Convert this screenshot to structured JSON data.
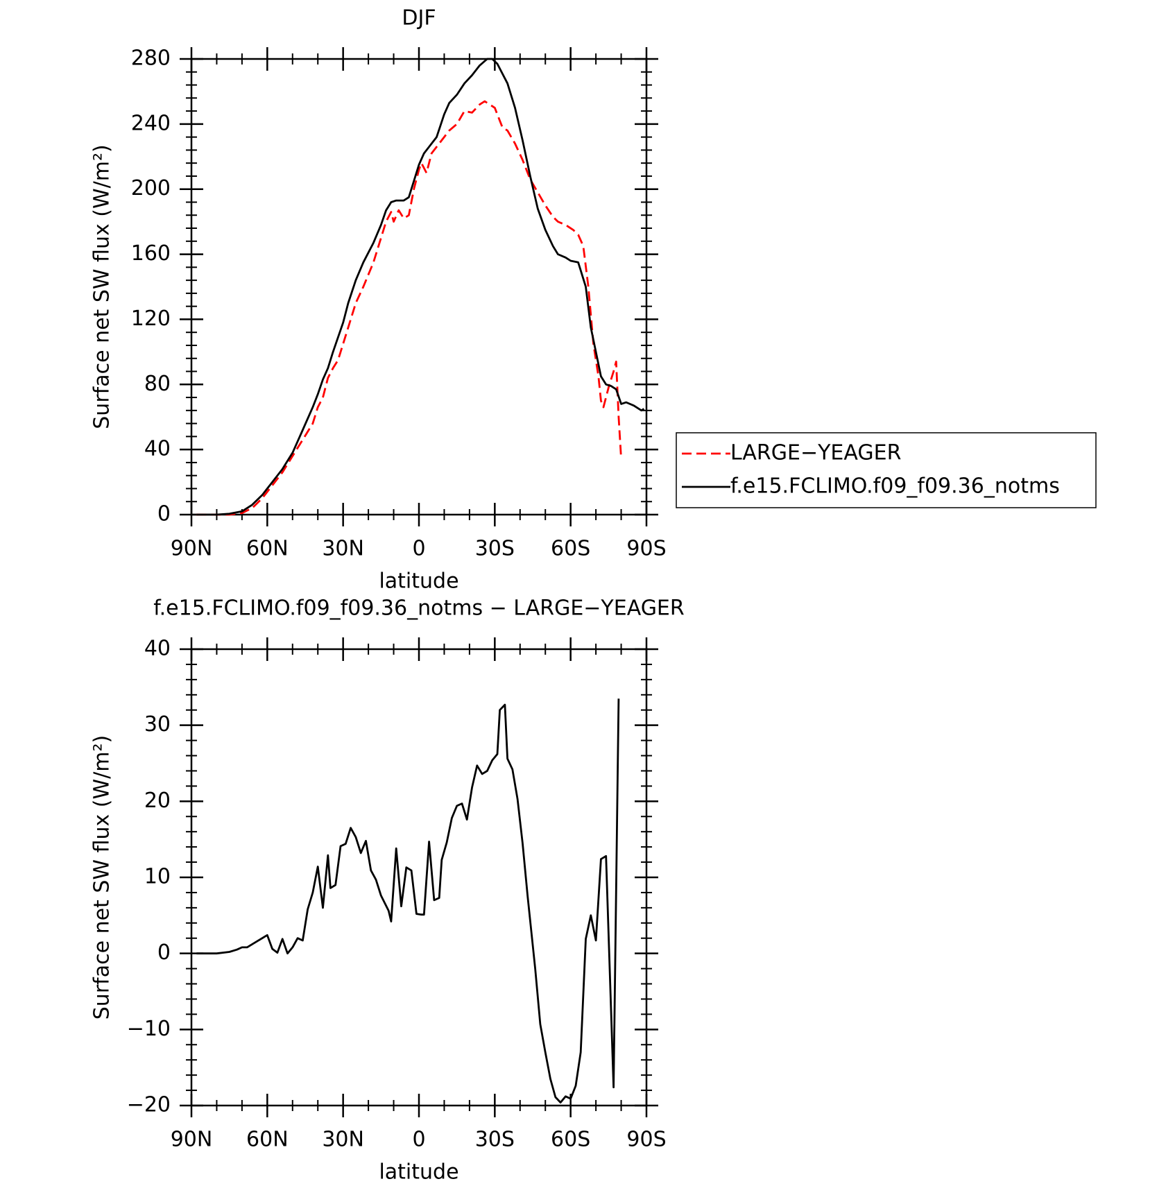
{
  "chart_data": [
    {
      "type": "line",
      "title": "DJF",
      "xlabel": "latitude",
      "ylabel": "Surface net SW flux (W/m²)",
      "xlim": [
        90,
        -90
      ],
      "xticks": [
        {
          "value": 90,
          "label": "90N"
        },
        {
          "value": 60,
          "label": "60N"
        },
        {
          "value": 30,
          "label": "30N"
        },
        0,
        {
          "value": -30,
          "label": "30S"
        },
        {
          "value": -60,
          "label": "60S"
        },
        {
          "value": -90,
          "label": "90S"
        }
      ],
      "ylim": [
        0,
        280
      ],
      "yticks": [
        0,
        40,
        80,
        120,
        160,
        200,
        240,
        280
      ],
      "legend": "right",
      "series": [
        {
          "name": "LARGE−YEAGER",
          "color": "#ff0000",
          "linestyle": "dashed",
          "x": [
            88,
            75,
            70,
            66,
            62,
            58,
            54,
            50,
            46,
            42,
            40,
            38,
            36,
            34,
            32,
            28,
            25,
            22,
            18,
            15,
            13,
            11,
            10,
            8,
            6,
            4,
            2,
            0,
            -1,
            -3,
            -5,
            -7,
            -10,
            -12,
            -15,
            -18,
            -21,
            -24,
            -26,
            -28,
            -30,
            -33,
            -35,
            -38,
            -41,
            -44,
            -47,
            -50,
            -53,
            -55,
            -58,
            -61,
            -63,
            -65,
            -67,
            -69,
            -71,
            -72,
            -73,
            -75,
            -77,
            -78,
            -79,
            -80
          ],
          "values": [
            0,
            0,
            1,
            4,
            10,
            18,
            26,
            36,
            46,
            56,
            66,
            72,
            84,
            90,
            95,
            115,
            130,
            140,
            155,
            170,
            180,
            186,
            180,
            187,
            182,
            184,
            200,
            212,
            216,
            210,
            222,
            226,
            232,
            236,
            240,
            248,
            247,
            252,
            254,
            252,
            250,
            238,
            236,
            228,
            218,
            206,
            198,
            190,
            183,
            180,
            178,
            175,
            172,
            165,
            140,
            105,
            85,
            70,
            66,
            78,
            88,
            94,
            60,
            34
          ]
        },
        {
          "name": "f.e15.FCLIMO.f09_f09.36_notms",
          "color": "#000000",
          "linestyle": "solid",
          "x": [
            88,
            80,
            75,
            70,
            66,
            62,
            58,
            54,
            50,
            46,
            42,
            40,
            38,
            36,
            34,
            30,
            28,
            25,
            22,
            18,
            15,
            13,
            11,
            9,
            6,
            4,
            2,
            0,
            -2,
            -4,
            -7,
            -10,
            -12,
            -15,
            -18,
            -21,
            -24,
            -27,
            -29,
            -31,
            -35,
            -38,
            -41,
            -44,
            -47,
            -50,
            -53,
            -55,
            -58,
            -60,
            -63,
            -65,
            -66,
            -68,
            -70,
            -72,
            -74,
            -76,
            -78,
            -80,
            -82,
            -85,
            -88,
            -89
          ],
          "values": [
            0,
            0,
            0.5,
            2,
            6,
            12,
            20,
            28,
            38,
            52,
            66,
            74,
            83,
            90,
            100,
            118,
            130,
            144,
            155,
            167,
            178,
            187,
            192,
            193,
            193,
            195,
            205,
            215,
            222,
            226,
            232,
            246,
            253,
            258,
            265,
            270,
            276,
            280,
            280,
            277,
            265,
            250,
            230,
            208,
            188,
            175,
            165,
            160,
            158,
            156,
            155,
            145,
            140,
            115,
            100,
            85,
            80,
            79,
            77,
            68,
            69,
            67,
            64,
            65
          ]
        }
      ]
    },
    {
      "type": "line",
      "title": "f.e15.FCLIMO.f09_f09.36_notms − LARGE−YEAGER",
      "xlabel": "latitude",
      "ylabel": "Surface net SW flux (W/m²)",
      "xlim": [
        90,
        -90
      ],
      "xticks": [
        {
          "value": 90,
          "label": "90N"
        },
        {
          "value": 60,
          "label": "60N"
        },
        {
          "value": 30,
          "label": "30N"
        },
        0,
        {
          "value": -30,
          "label": "30S"
        },
        {
          "value": -60,
          "label": "60S"
        },
        {
          "value": -90,
          "label": "90S"
        }
      ],
      "ylim": [
        -20,
        40
      ],
      "yticks": [
        {
          "value": -20,
          "label": "−20"
        },
        {
          "value": -10,
          "label": "−10"
        },
        0,
        10,
        20,
        30,
        40
      ],
      "series": [
        {
          "color": "#000000",
          "linestyle": "solid",
          "x": [
            88,
            80,
            75,
            72,
            70,
            68,
            64,
            60,
            58,
            56,
            54,
            52,
            50,
            48,
            46,
            44,
            42,
            40,
            38,
            36,
            35,
            33,
            31,
            29,
            27,
            25,
            23,
            21,
            19,
            17,
            15,
            12,
            11,
            9,
            7,
            5,
            3,
            1,
            -1,
            -2,
            -4,
            -6,
            -8,
            -9,
            -11,
            -13,
            -15,
            -17,
            -19,
            -21,
            -23,
            -25,
            -27,
            -29,
            -31,
            -32,
            -34,
            -35,
            -37,
            -39,
            -41,
            -43,
            -46,
            -48,
            -50,
            -52,
            -54,
            -56,
            -58,
            -60,
            -62,
            -64,
            -66,
            -68,
            -70,
            -72,
            -74,
            -77,
            -79
          ],
          "values": [
            0,
            0,
            0.2,
            0.5,
            0.8,
            0.8,
            1.6,
            2.4,
            0.6,
            0.1,
            1.9,
            0,
            0.8,
            2,
            1.7,
            5.8,
            8,
            11.4,
            6,
            12.9,
            8.6,
            9,
            14.1,
            14.4,
            16.5,
            15.3,
            13.2,
            14.8,
            10.9,
            9.7,
            7.6,
            5.6,
            4.2,
            13.8,
            6.2,
            11.3,
            10.9,
            5.2,
            5.1,
            5.1,
            14.7,
            7,
            7.3,
            12.3,
            14.6,
            17.8,
            19.4,
            19.7,
            17.6,
            21.8,
            24.7,
            23.6,
            24,
            25.4,
            26.2,
            32,
            32.7,
            25.6,
            24.2,
            20.3,
            14.5,
            7.5,
            -2,
            -9.3,
            -13,
            -16.5,
            -18.9,
            -19.6,
            -18.8,
            -19.1,
            -17.4,
            -13,
            1.9,
            5,
            1.7,
            12.4,
            12.8,
            -17.6,
            33.5
          ]
        }
      ]
    }
  ]
}
